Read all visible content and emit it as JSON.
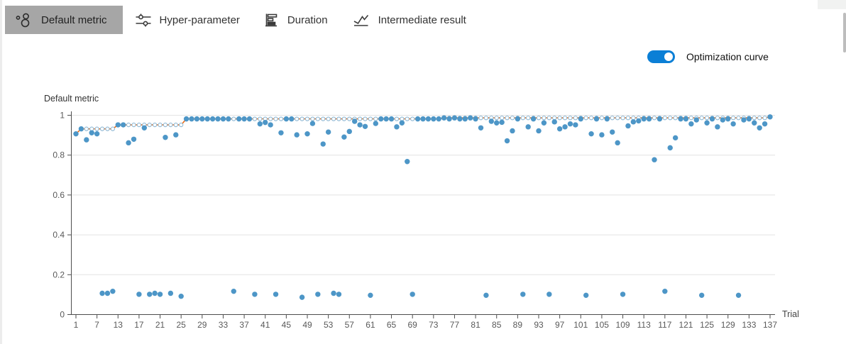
{
  "header": {
    "tabs": [
      {
        "label": "Default metric",
        "selected": true
      },
      {
        "label": "Hyper-parameter",
        "selected": false
      },
      {
        "label": "Duration",
        "selected": false
      },
      {
        "label": "Intermediate result",
        "selected": false
      }
    ]
  },
  "toggle": {
    "label": "Optimization curve",
    "state": "on",
    "color": "#0b7fd6"
  },
  "colors": {
    "tab_selected_bg": "#a6a6a6",
    "axis": "#4d4d4d",
    "grid": "#e3e3e3",
    "tick_label": "#595959",
    "dot": "#4D96C7",
    "curve": "#EE6B12",
    "curve_marker_stroke": "#8FB8D4"
  },
  "chart_data": {
    "type": "scatter",
    "title": "Default metric",
    "xlabel": "Trial",
    "ylabel": "",
    "ylim": [
      0,
      1
    ],
    "grid": true,
    "y_tick_values": [
      0,
      0.2,
      0.4,
      0.6,
      0.8,
      1
    ],
    "y_tick_labels": [
      "0",
      "0.2",
      "0.4",
      "0.6",
      "0.8",
      "1"
    ],
    "x_tick_labels": [
      "1",
      "7",
      "13",
      "17",
      "21",
      "25",
      "29",
      "33",
      "37",
      "41",
      "45",
      "49",
      "53",
      "57",
      "61",
      "65",
      "69",
      "73",
      "77",
      "81",
      "85",
      "89",
      "93",
      "97",
      "101",
      "105",
      "109",
      "113",
      "117",
      "121",
      "125",
      "129",
      "133",
      "137"
    ],
    "x_tick_every": 4,
    "series": [
      {
        "name": "Default metric",
        "type": "scatter",
        "color": "#4D96C7",
        "values": [
          0.905,
          0.93,
          0.875,
          0.91,
          0.905,
          0.105,
          0.105,
          0.115,
          0.95,
          0.95,
          0.86,
          0.878,
          0.1,
          0.935,
          0.1,
          0.105,
          0.1,
          0.887,
          0.105,
          0.9,
          0.09,
          0.98,
          0.98,
          0.98,
          0.98,
          0.98,
          0.98,
          0.98,
          0.98,
          0.98,
          0.115,
          0.98,
          0.98,
          0.98,
          0.1,
          0.955,
          0.962,
          0.95,
          0.1,
          0.91,
          0.98,
          0.98,
          0.9,
          0.085,
          0.905,
          0.957,
          0.1,
          0.854,
          0.914,
          0.105,
          0.1,
          0.889,
          0.917,
          0.968,
          0.95,
          0.942,
          0.095,
          0.957,
          0.98,
          0.98,
          0.98,
          0.94,
          0.96,
          0.766,
          0.1,
          0.98,
          0.98,
          0.98,
          0.98,
          0.98,
          0.985,
          0.98,
          0.985,
          0.98,
          0.98,
          0.985,
          0.98,
          0.935,
          0.095,
          0.968,
          0.96,
          0.963,
          0.87,
          0.92,
          0.98,
          0.1,
          0.94,
          0.98,
          0.92,
          0.96,
          0.1,
          0.965,
          0.93,
          0.94,
          0.955,
          0.95,
          0.98,
          0.095,
          0.905,
          0.98,
          0.9,
          0.98,
          0.914,
          0.86,
          0.1,
          0.945,
          0.965,
          0.97,
          0.98,
          0.98,
          0.775,
          0.98,
          0.115,
          0.835,
          0.885,
          0.98,
          0.98,
          0.955,
          0.975,
          0.095,
          0.96,
          0.98,
          0.94,
          0.975,
          0.98,
          0.955,
          0.095,
          0.975,
          0.98,
          0.96,
          0.935,
          0.955,
          0.99
        ]
      },
      {
        "name": "Optimization curve",
        "type": "line",
        "color": "#EE6B12",
        "marker": "hollow-circle",
        "derivation": "running-max"
      }
    ]
  }
}
